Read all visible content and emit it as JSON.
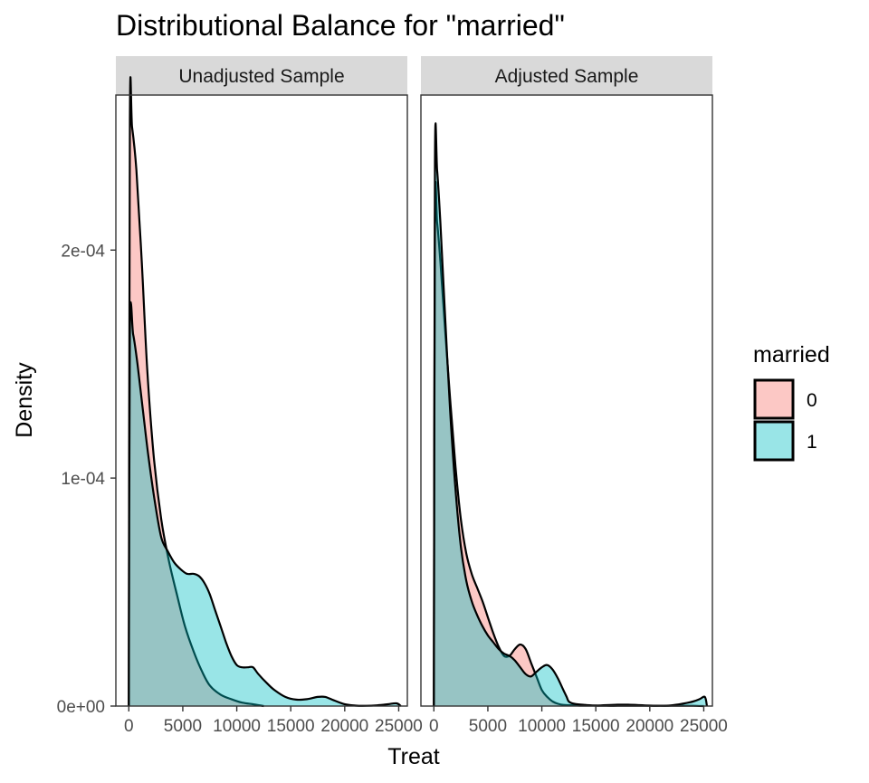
{
  "chart_data": {
    "type": "area",
    "title": "Distributional Balance for \"married\"",
    "xlabel": "Treat",
    "ylabel": "Density",
    "xlim": [
      -1200,
      25800
    ],
    "ylim": [
      0,
      0.000268
    ],
    "x_ticks": [
      0,
      5000,
      10000,
      15000,
      20000,
      25000
    ],
    "x_tick_labels": [
      "0",
      "5000",
      "10000",
      "15000",
      "20000",
      "25000"
    ],
    "y_ticks": [
      0,
      0.0001,
      0.0002
    ],
    "y_tick_labels": [
      "0e+00",
      "1e-04",
      "2e-04"
    ],
    "legend": {
      "title": "married",
      "position": "right",
      "entries": [
        {
          "label": "0",
          "color": "#F8766D"
        },
        {
          "label": "1",
          "color": "#00BFC4"
        }
      ]
    },
    "fill_opacity": 0.4,
    "panels": [
      {
        "name": "Unadjusted Sample",
        "series": [
          {
            "name": "0",
            "color": "#F8766D",
            "x": [
              0,
              100,
              300,
              700,
              1200,
              1700,
              2300,
              3000,
              3700,
              4500,
              5200,
              6000,
              6800,
              7500,
              8500,
              9500,
              10500,
              11500,
              12500
            ],
            "y": [
              0,
              0.000257,
              0.000254,
              0.000235,
              0.000195,
              0.000148,
              0.00011,
              8.2e-05,
              6.4e-05,
              4.8e-05,
              3.5e-05,
              2.4e-05,
              1.5e-05,
              9e-06,
              5e-06,
              3e-06,
              1.5e-06,
              8e-07,
              0
            ]
          },
          {
            "name": "1",
            "color": "#00BFC4",
            "x": [
              0,
              100,
              400,
              800,
              1300,
              1800,
              2400,
              3000,
              3600,
              4200,
              4800,
              5400,
              6000,
              6500,
              7000,
              7500,
              8000,
              8500,
              9000,
              9500,
              10000,
              10500,
              11000,
              11500,
              12000,
              12800,
              13500,
              14500,
              15500,
              16500,
              17500,
              18200,
              19000,
              20000,
              21000,
              22000,
              23000,
              24000,
              24800,
              25200
            ],
            "y": [
              0,
              0.000165,
              0.000163,
              0.00015,
              0.00013,
              0.00011,
              9e-05,
              7.4e-05,
              6.8e-05,
              6.3e-05,
              6e-05,
              5.8e-05,
              5.8e-05,
              5.7e-05,
              5.4e-05,
              4.9e-05,
              4.2e-05,
              3.5e-05,
              2.8e-05,
              2.2e-05,
              1.8e-05,
              1.7e-05,
              1.7e-05,
              1.7e-05,
              1.4e-05,
              1e-05,
              7e-06,
              4e-06,
              2.8e-06,
              3e-06,
              4e-06,
              4e-06,
              2.5e-06,
              8e-07,
              2e-07,
              1e-07,
              3e-07,
              8e-07,
              1.2e-06,
              0
            ]
          }
        ]
      },
      {
        "name": "Adjusted Sample",
        "series": [
          {
            "name": "0",
            "color": "#F8766D",
            "x": [
              0,
              100,
              300,
              600,
              1000,
              1500,
              2000,
              2500,
              3000,
              3500,
              4000,
              4500,
              5000,
              5500,
              6000,
              6500,
              7000,
              7500,
              8000,
              8500,
              9000,
              9500,
              10000,
              10500,
              11000,
              11500,
              12000,
              13000,
              14000,
              15000,
              16000,
              17000,
              18000,
              19000,
              20000,
              21000,
              22000,
              23000,
              24000,
              25000
            ],
            "y": [
              0,
              0.000214,
              0.000212,
              0.000195,
              0.000168,
              0.000135,
              0.000105,
              8.2e-05,
              6.7e-05,
              5.8e-05,
              5.2e-05,
              4.6e-05,
              3.9e-05,
              3.2e-05,
              2.6e-05,
              2.2e-05,
              2.2e-05,
              2.5e-05,
              2.7e-05,
              2.5e-05,
              1.9e-05,
              1.3e-05,
              7e-06,
              4e-06,
              2e-06,
              1e-06,
              5e-07,
              3e-07,
              2e-07,
              2e-07,
              4e-07,
              6e-07,
              6e-07,
              4e-07,
              2e-07,
              1e-07,
              1e-07,
              1e-07,
              1e-07,
              0
            ]
          },
          {
            "name": "1",
            "color": "#00BFC4",
            "x": [
              0,
              100,
              300,
              600,
              1000,
              1500,
              2000,
              2500,
              3000,
              3500,
              4000,
              4500,
              5000,
              5500,
              6000,
              6500,
              7000,
              7500,
              8000,
              8500,
              9000,
              9500,
              10000,
              10500,
              11000,
              11500,
              12000,
              12300,
              12500,
              13000,
              14000,
              15000,
              16000,
              17000,
              18000,
              19000,
              20000,
              21000,
              22000,
              23000,
              24000,
              24600,
              25100,
              25300
            ],
            "y": [
              0,
              0.000238,
              0.000235,
              0.000212,
              0.000175,
              0.00013,
              9.5e-05,
              7e-05,
              5.5e-05,
              4.6e-05,
              4e-05,
              3.5e-05,
              3.1e-05,
              2.8e-05,
              2.5e-05,
              2.3e-05,
              2.2e-05,
              2e-05,
              1.7e-05,
              1.4e-05,
              1.3e-05,
              1.5e-05,
              1.7e-05,
              1.8e-05,
              1.6e-05,
              1.2e-05,
              7e-06,
              4e-06,
              2e-06,
              1e-06,
              5e-07,
              2e-07,
              1e-07,
              1e-07,
              1e-07,
              1e-07,
              1e-07,
              1e-07,
              3e-07,
              1e-06,
              2e-06,
              3e-06,
              4e-06,
              0
            ]
          }
        ]
      }
    ]
  }
}
